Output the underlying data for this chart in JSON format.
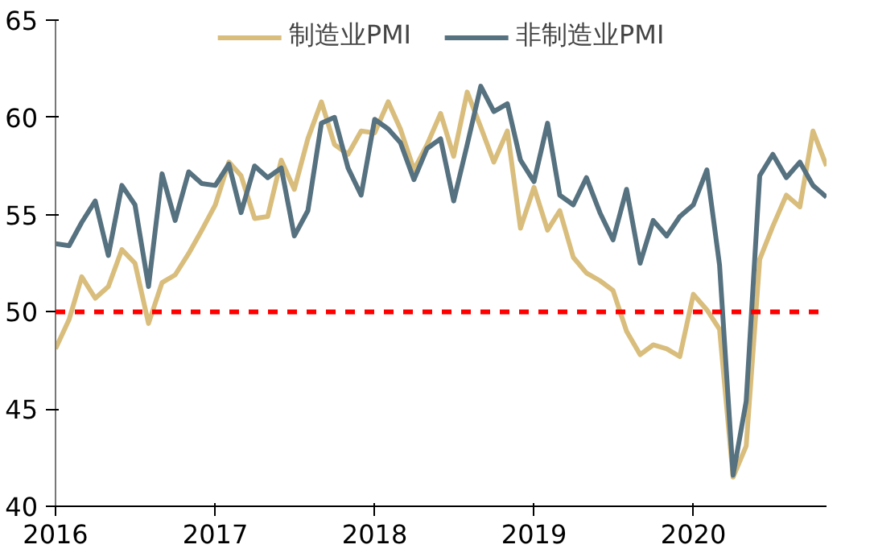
{
  "chart_data": {
    "type": "line",
    "x": [
      "2016-01",
      "2016-02",
      "2016-03",
      "2016-04",
      "2016-05",
      "2016-06",
      "2016-07",
      "2016-08",
      "2016-09",
      "2016-10",
      "2016-11",
      "2016-12",
      "2017-01",
      "2017-02",
      "2017-03",
      "2017-04",
      "2017-05",
      "2017-06",
      "2017-07",
      "2017-08",
      "2017-09",
      "2017-10",
      "2017-11",
      "2017-12",
      "2018-01",
      "2018-02",
      "2018-03",
      "2018-04",
      "2018-05",
      "2018-06",
      "2018-07",
      "2018-08",
      "2018-09",
      "2018-10",
      "2018-11",
      "2018-12",
      "2019-01",
      "2019-02",
      "2019-03",
      "2019-04",
      "2019-05",
      "2019-06",
      "2019-07",
      "2019-08",
      "2019-09",
      "2019-10",
      "2019-11",
      "2019-12",
      "2020-01",
      "2020-02",
      "2020-03",
      "2020-04",
      "2020-05",
      "2020-06",
      "2020-07",
      "2020-08",
      "2020-09",
      "2020-10",
      "2020-11"
    ],
    "series": [
      {
        "name": "制造业PMI",
        "color": "#d9bd7c",
        "values": [
          48.1,
          49.6,
          51.8,
          50.7,
          51.3,
          53.2,
          52.5,
          49.4,
          51.5,
          51.9,
          53.0,
          54.2,
          55.5,
          57.7,
          57.0,
          54.8,
          54.9,
          57.8,
          56.3,
          58.9,
          60.8,
          58.6,
          58.1,
          59.3,
          59.2,
          60.8,
          59.4,
          57.3,
          58.6,
          60.2,
          58.0,
          61.3,
          59.5,
          57.7,
          59.3,
          54.3,
          56.4,
          54.2,
          55.2,
          52.8,
          52.0,
          51.6,
          51.1,
          49.0,
          47.8,
          48.3,
          48.1,
          47.7,
          50.9,
          50.1,
          49.1,
          41.5,
          43.1,
          52.7,
          54.4,
          56.0,
          55.4,
          59.3,
          57.5
        ]
      },
      {
        "name": "非制造业PMI",
        "color": "#56717f",
        "values": [
          53.5,
          53.4,
          54.6,
          55.7,
          52.9,
          56.5,
          55.5,
          51.3,
          57.1,
          54.7,
          57.2,
          56.6,
          56.5,
          57.6,
          55.1,
          57.5,
          56.9,
          57.4,
          53.9,
          55.2,
          59.7,
          60.0,
          57.4,
          56.0,
          59.9,
          59.4,
          58.7,
          56.8,
          58.4,
          58.9,
          55.7,
          58.6,
          61.6,
          60.3,
          60.7,
          57.8,
          56.7,
          59.7,
          56.0,
          55.5,
          56.9,
          55.1,
          53.7,
          56.3,
          52.5,
          54.7,
          53.9,
          54.9,
          55.5,
          57.3,
          52.4,
          41.6,
          45.4,
          57.0,
          58.1,
          56.9,
          57.7,
          56.5,
          55.9
        ]
      }
    ],
    "xlim": [
      "2016-01",
      "2020-11"
    ],
    "xticks": [
      "2016",
      "2017",
      "2018",
      "2019",
      "2020"
    ],
    "ylim": [
      40,
      65
    ],
    "yticks": [
      40,
      45,
      50,
      55,
      60,
      65
    ],
    "ref_lines": [
      {
        "axis": "y",
        "value": 50,
        "color": "#ff0000",
        "line_style": "dashed"
      }
    ],
    "legend": "top",
    "grid": false,
    "line_style": "solid",
    "marker": "none"
  }
}
